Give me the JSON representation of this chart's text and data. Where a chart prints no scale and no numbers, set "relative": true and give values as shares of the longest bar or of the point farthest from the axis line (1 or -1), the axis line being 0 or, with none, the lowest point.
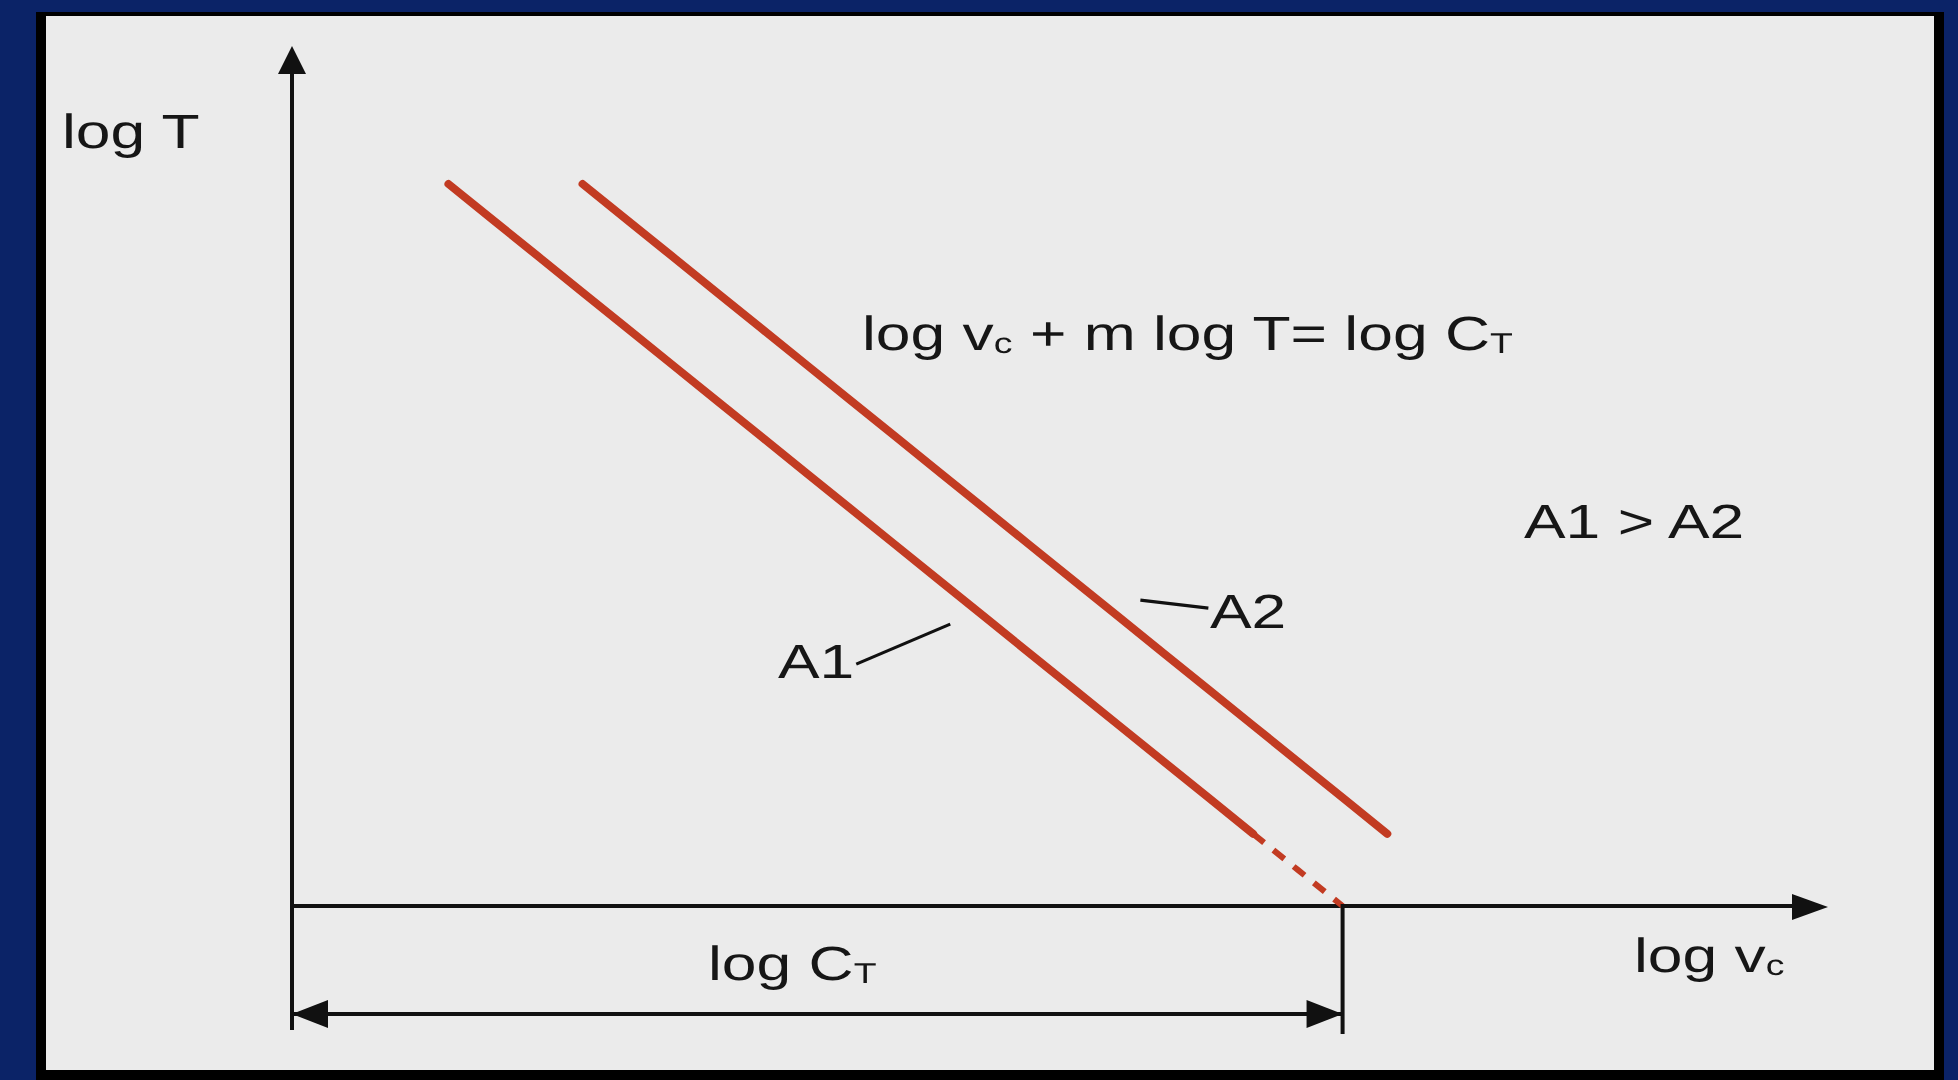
{
  "chart_data": {
    "type": "line",
    "xlabel": "log v$_{c}$",
    "ylabel": "log T",
    "relative": true,
    "marker": "none",
    "categories": [
      null,
      null,
      null,
      null,
      null,
      null,
      null,
      null,
      null,
      null,
      null,
      null,
      null,
      null,
      null,
      null,
      null,
      null,
      null,
      null,
      null,
      null,
      null,
      null,
      null,
      null,
      null,
      null,
      null,
      null,
      null,
      null,
      null,
      null
    ],
    "series": [
      {
        "name": "A1",
        "color": "#c23b22",
        "values": [
          null,
          null,
          null,
          1,
          0.95,
          0.9,
          0.85,
          0.8,
          0.75,
          0.7,
          0.65,
          0.6,
          0.55,
          0.5,
          0.45,
          0.4,
          0.35,
          0.3,
          0.25,
          0.2,
          0.15,
          0.1,
          null,
          null,
          null,
          null,
          null,
          null,
          null,
          null,
          null,
          null,
          null,
          null
        ]
      },
      {
        "name": "A2",
        "color": "#c23b22",
        "values": [
          null,
          null,
          null,
          null,
          null,
          null,
          1,
          0.95,
          0.9,
          0.85,
          0.8,
          0.75,
          0.7,
          0.65,
          0.6,
          0.55,
          0.5,
          0.45,
          0.4,
          0.35,
          0.3,
          0.25,
          0.2,
          0.15,
          0.1,
          null,
          null,
          null,
          null,
          null,
          null,
          null,
          null,
          null
        ]
      },
      {
        "color": "#c23b22",
        "line_style": "dashed",
        "values": [
          null,
          null,
          null,
          null,
          null,
          null,
          null,
          null,
          null,
          null,
          null,
          null,
          null,
          null,
          null,
          null,
          null,
          null,
          null,
          null,
          null,
          0.1,
          0.05,
          0,
          null,
          null,
          null,
          null,
          null,
          null,
          null,
          null,
          null,
          null
        ]
      }
    ],
    "annotations": [
      "log v$_{c}$ + m log T= log C$_{T}$",
      "A1 > A2",
      "log C$_{T}$"
    ]
  }
}
